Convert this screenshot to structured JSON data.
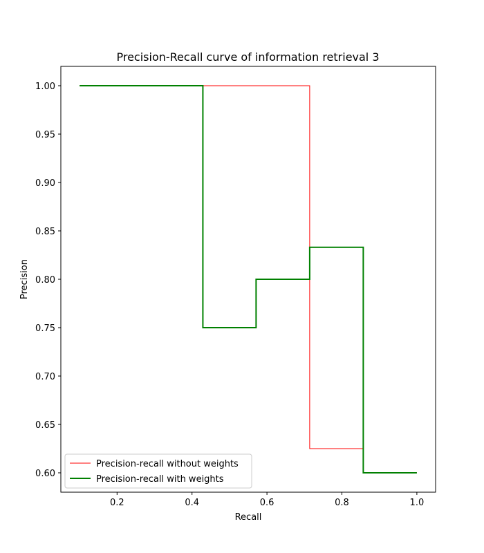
{
  "chart_data": {
    "type": "line",
    "step": true,
    "title": "Precision-Recall curve of information retrieval 3",
    "xlabel": "Recall",
    "ylabel": "Precision",
    "xlim": [
      0.05,
      1.05
    ],
    "ylim": [
      0.58,
      1.02
    ],
    "xticks": [
      0.2,
      0.4,
      0.6,
      0.8,
      1.0
    ],
    "xtick_labels": [
      "0.2",
      "0.4",
      "0.6",
      "0.8",
      "1.0"
    ],
    "yticks": [
      0.6,
      0.65,
      0.7,
      0.75,
      0.8,
      0.85,
      0.9,
      0.95,
      1.0
    ],
    "ytick_labels": [
      "0.60",
      "0.65",
      "0.70",
      "0.75",
      "0.80",
      "0.85",
      "0.90",
      "0.95",
      "1.00"
    ],
    "grid": false,
    "legend_position": "bottom-left",
    "series": [
      {
        "name": "Precision-recall without weights",
        "color": "#ff0000",
        "line_width": 1,
        "x": [
          0.1,
          0.714,
          0.714,
          0.857,
          0.857,
          1.0
        ],
        "y": [
          1.0,
          1.0,
          0.625,
          0.625,
          0.6,
          0.6
        ]
      },
      {
        "name": "Precision-recall with weights",
        "color": "#008000",
        "line_width": 2,
        "x": [
          0.1,
          0.429,
          0.429,
          0.571,
          0.571,
          0.714,
          0.714,
          0.857,
          0.857,
          1.0
        ],
        "y": [
          1.0,
          1.0,
          0.75,
          0.75,
          0.8,
          0.8,
          0.833,
          0.833,
          0.6,
          0.6
        ]
      }
    ]
  }
}
